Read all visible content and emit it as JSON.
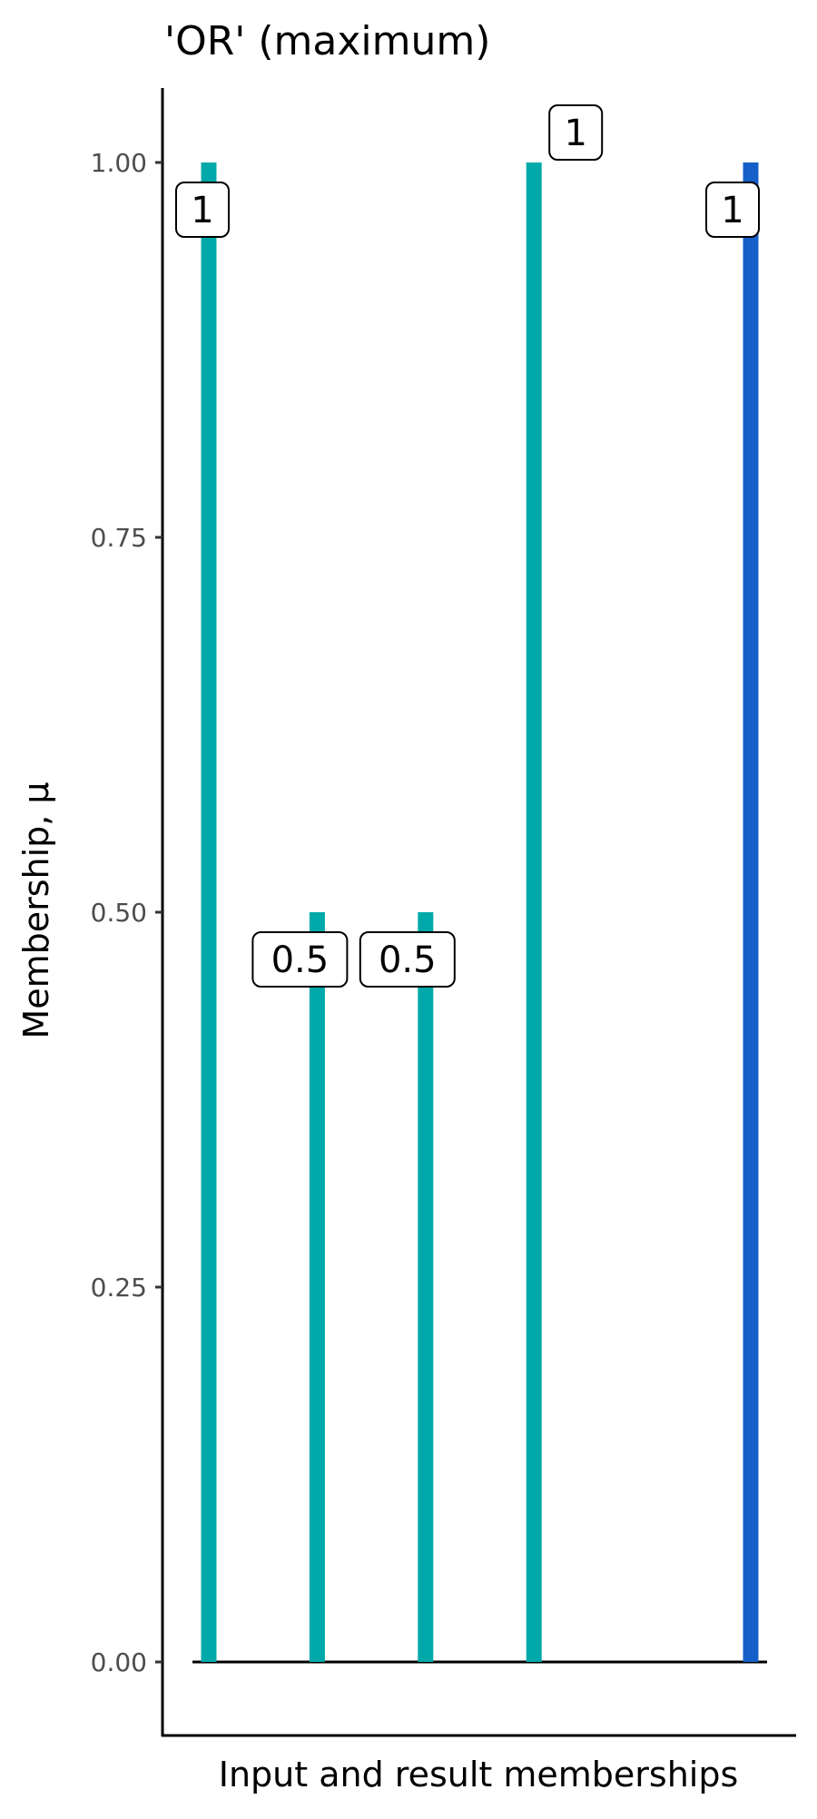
{
  "chart_data": {
    "type": "bar",
    "title": "'OR' (maximum)",
    "xlabel": "Input and result memberships",
    "ylabel": "Membership, μ",
    "ylim": [
      0,
      1
    ],
    "yticks": [
      "0.00",
      "0.25",
      "0.50",
      "0.75",
      "1.00"
    ],
    "x": [
      1,
      2,
      3,
      4,
      6
    ],
    "values": [
      1,
      0.5,
      0.5,
      1,
      1
    ],
    "labels": [
      "1",
      "0.5",
      "0.5",
      "1",
      "1"
    ],
    "bar_roles": [
      "input",
      "input",
      "input",
      "input",
      "result"
    ],
    "colors": {
      "input": "#00A9A9",
      "result": "#1560C8"
    },
    "grid": false,
    "legend": "none"
  }
}
